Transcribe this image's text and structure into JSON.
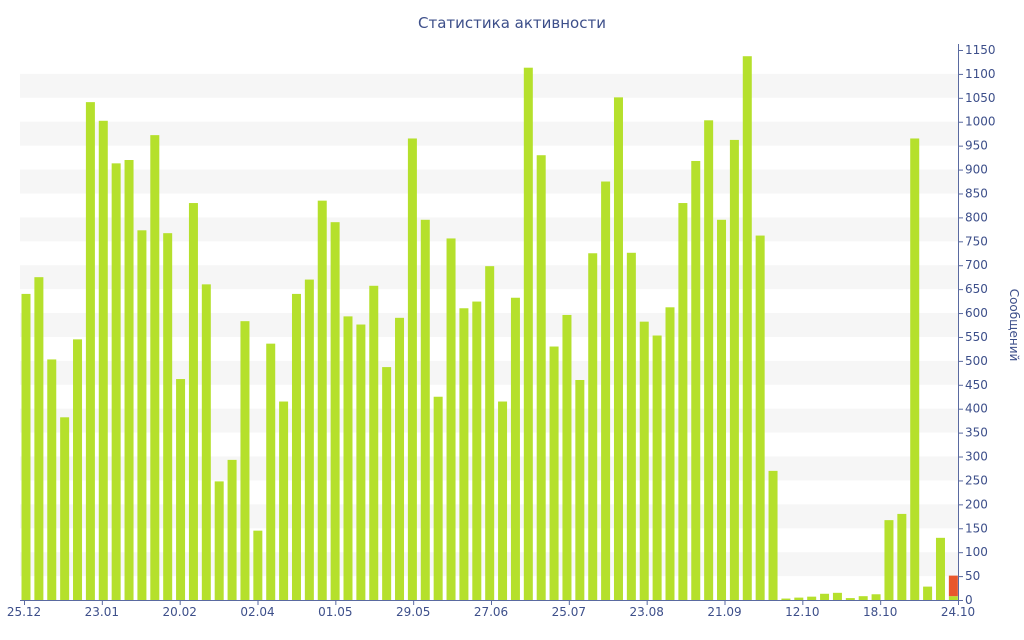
{
  "chart_data": {
    "type": "bar",
    "title": "Статистика активности",
    "xlabel": "",
    "ylabel": "Сообщений",
    "y_axis_position": "right",
    "ylim": [
      0,
      1150
    ],
    "y_ticks": [
      0,
      50,
      100,
      150,
      200,
      250,
      300,
      350,
      400,
      450,
      500,
      550,
      600,
      650,
      700,
      750,
      800,
      850,
      900,
      950,
      1000,
      1050,
      1100,
      1150
    ],
    "x_tick_labels": [
      "25.12",
      "23.01",
      "20.02",
      "02.04",
      "01.05",
      "29.05",
      "27.06",
      "25.07",
      "23.08",
      "21.09",
      "12.10",
      "18.10",
      "24.10"
    ],
    "grid": "horizontal alternating bands",
    "series": [
      {
        "color": "#b5e02c",
        "values": [
          640,
          675,
          503,
          382,
          545,
          1041,
          1002,
          913,
          920,
          773,
          972,
          767,
          462,
          830,
          660,
          248,
          293,
          583,
          145,
          536,
          415,
          640,
          670,
          835,
          790,
          593,
          576,
          657,
          487,
          590,
          965,
          795,
          425,
          756,
          610,
          624,
          698,
          415,
          632,
          1113,
          930,
          530,
          596,
          460,
          725,
          875,
          1051,
          726,
          582,
          553,
          612,
          830,
          918,
          1003,
          795,
          962,
          1137,
          762,
          270,
          3,
          5,
          7,
          13,
          15,
          4,
          8,
          12,
          167,
          180,
          965,
          28,
          130,
          8
        ]
      },
      {
        "color": "#e8572c",
        "values": [
          0,
          0,
          0,
          0,
          0,
          0,
          0,
          0,
          0,
          0,
          0,
          0,
          0,
          0,
          0,
          0,
          0,
          0,
          0,
          0,
          0,
          0,
          0,
          0,
          0,
          0,
          0,
          0,
          0,
          0,
          0,
          0,
          0,
          0,
          0,
          0,
          0,
          0,
          0,
          0,
          0,
          0,
          0,
          0,
          0,
          0,
          0,
          0,
          0,
          0,
          0,
          0,
          0,
          0,
          0,
          0,
          0,
          0,
          0,
          0,
          0,
          0,
          0,
          0,
          0,
          0,
          0,
          0,
          0,
          0,
          0,
          0,
          43
        ]
      }
    ]
  }
}
